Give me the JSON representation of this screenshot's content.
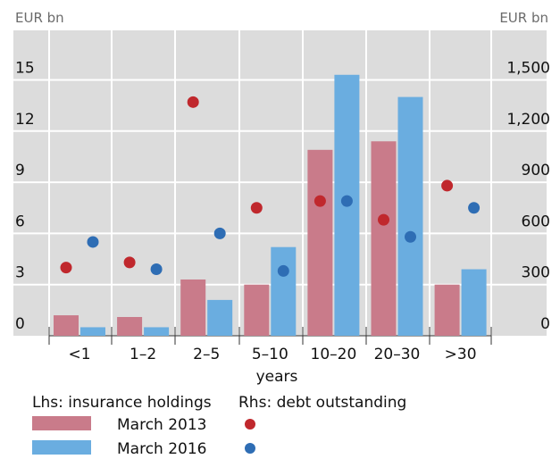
{
  "chart_data": {
    "type": "bar",
    "left_unit": "EUR bn",
    "right_unit": "EUR bn",
    "xlabel": "years",
    "categories": [
      "<1",
      "1–2",
      "2–5",
      "5–10",
      "10–20",
      "20–30",
      ">30"
    ],
    "ylim_left": [
      0,
      18
    ],
    "ylim_right": [
      0,
      1800
    ],
    "yticks_left": [
      "0",
      "3",
      "6",
      "9",
      "12",
      "15"
    ],
    "yticks_right": [
      "0",
      "300",
      "600",
      "900",
      "1,200",
      "1,500"
    ],
    "yticks_left_values": [
      0,
      3,
      6,
      9,
      12,
      15
    ],
    "yticks_right_values": [
      0,
      300,
      600,
      900,
      1200,
      1500
    ],
    "grid": true,
    "bar_series": [
      {
        "name": "March 2013",
        "axis": "left",
        "color": "#c97b8a",
        "values": [
          1.2,
          1.1,
          3.3,
          3.0,
          10.9,
          11.4,
          3.0
        ]
      },
      {
        "name": "March 2016",
        "axis": "left",
        "color": "#6aade0",
        "values": [
          0.5,
          0.5,
          2.1,
          5.2,
          15.3,
          14.0,
          3.9
        ]
      }
    ],
    "dot_series": [
      {
        "name": "March 2013",
        "axis": "right",
        "color": "#c0282d",
        "values": [
          400,
          430,
          1370,
          750,
          790,
          680,
          880
        ]
      },
      {
        "name": "March 2016",
        "axis": "right",
        "color": "#2e6db4",
        "values": [
          550,
          390,
          600,
          380,
          790,
          580,
          750
        ]
      }
    ],
    "legend": {
      "lhs_title": "Lhs: insurance holdings",
      "rhs_title": "Rhs: debt outstanding",
      "entries": [
        "March 2013",
        "March 2016"
      ],
      "placement": "bottom"
    }
  }
}
